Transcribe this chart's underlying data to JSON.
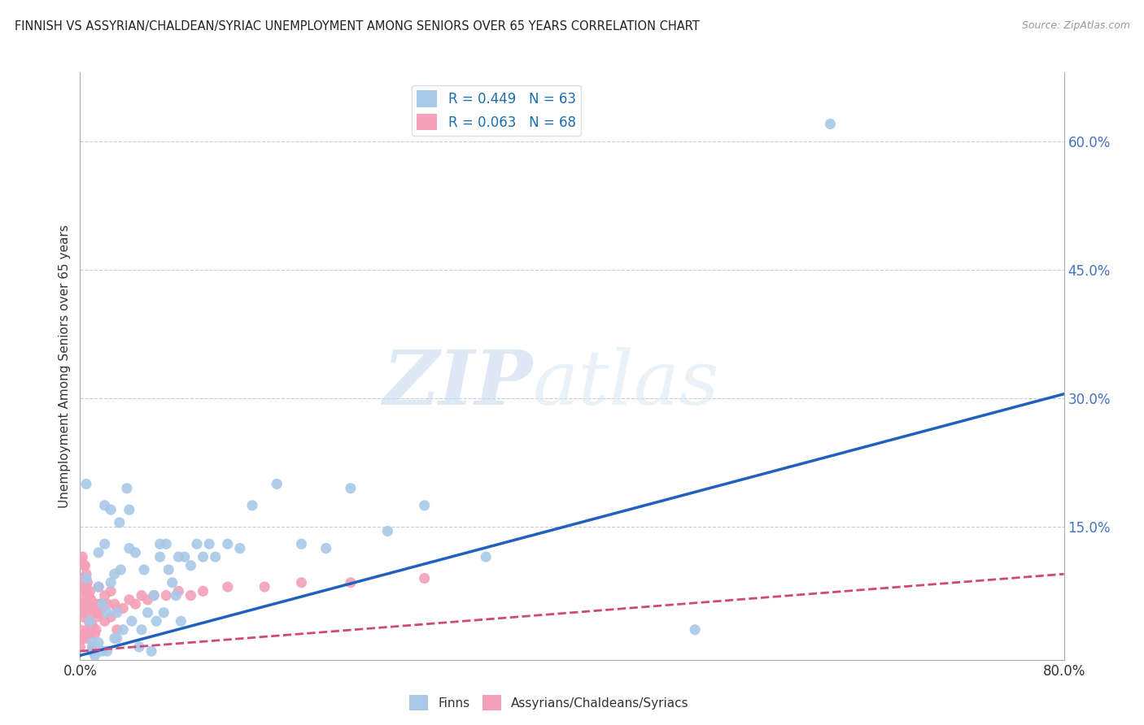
{
  "title": "FINNISH VS ASSYRIAN/CHALDEAN/SYRIAC UNEMPLOYMENT AMONG SENIORS OVER 65 YEARS CORRELATION CHART",
  "source": "Source: ZipAtlas.com",
  "ylabel": "Unemployment Among Seniors over 65 years",
  "xlim": [
    0,
    0.8
  ],
  "ylim": [
    -0.005,
    0.68
  ],
  "yticks": [
    0.15,
    0.3,
    0.45,
    0.6
  ],
  "ytick_labels": [
    "15.0%",
    "30.0%",
    "45.0%",
    "60.0%"
  ],
  "xtick_labels": [
    "0.0%",
    "80.0%"
  ],
  "blue_R": 0.449,
  "blue_N": 63,
  "pink_R": 0.063,
  "pink_N": 68,
  "blue_color": "#a8c8e8",
  "pink_color": "#f4a0b8",
  "blue_line_color": "#2060c0",
  "pink_line_color": "#d04878",
  "legend1": "Finns",
  "legend2": "Assyrians/Chaldeans/Syriacs",
  "watermark_zip": "ZIP",
  "watermark_atlas": "atlas",
  "background_color": "#ffffff",
  "blue_scatter_x": [
    0.005,
    0.005,
    0.008,
    0.01,
    0.01,
    0.012,
    0.015,
    0.015,
    0.015,
    0.018,
    0.018,
    0.02,
    0.02,
    0.022,
    0.022,
    0.025,
    0.025,
    0.028,
    0.028,
    0.03,
    0.03,
    0.032,
    0.033,
    0.035,
    0.038,
    0.04,
    0.04,
    0.042,
    0.045,
    0.048,
    0.05,
    0.052,
    0.055,
    0.058,
    0.06,
    0.062,
    0.065,
    0.065,
    0.068,
    0.07,
    0.072,
    0.075,
    0.078,
    0.08,
    0.082,
    0.085,
    0.09,
    0.095,
    0.1,
    0.105,
    0.11,
    0.12,
    0.13,
    0.14,
    0.16,
    0.18,
    0.2,
    0.22,
    0.25,
    0.28,
    0.33,
    0.5,
    0.61
  ],
  "blue_scatter_y": [
    0.2,
    0.09,
    0.04,
    0.015,
    0.005,
    0.0,
    0.12,
    0.08,
    0.015,
    0.06,
    0.005,
    0.175,
    0.13,
    0.05,
    0.005,
    0.17,
    0.085,
    0.095,
    0.02,
    0.02,
    0.05,
    0.155,
    0.1,
    0.03,
    0.195,
    0.17,
    0.125,
    0.04,
    0.12,
    0.01,
    0.03,
    0.1,
    0.05,
    0.005,
    0.07,
    0.04,
    0.13,
    0.115,
    0.05,
    0.13,
    0.1,
    0.085,
    0.07,
    0.115,
    0.04,
    0.115,
    0.105,
    0.13,
    0.115,
    0.13,
    0.115,
    0.13,
    0.125,
    0.175,
    0.2,
    0.13,
    0.125,
    0.195,
    0.145,
    0.175,
    0.115,
    0.03,
    0.62
  ],
  "pink_scatter_x": [
    0.0,
    0.0,
    0.0,
    0.001,
    0.001,
    0.001,
    0.002,
    0.002,
    0.002,
    0.002,
    0.002,
    0.003,
    0.003,
    0.003,
    0.004,
    0.004,
    0.004,
    0.004,
    0.005,
    0.005,
    0.005,
    0.005,
    0.006,
    0.006,
    0.006,
    0.007,
    0.007,
    0.008,
    0.008,
    0.008,
    0.009,
    0.009,
    0.01,
    0.01,
    0.01,
    0.011,
    0.012,
    0.012,
    0.013,
    0.013,
    0.014,
    0.015,
    0.015,
    0.016,
    0.018,
    0.02,
    0.02,
    0.022,
    0.025,
    0.025,
    0.028,
    0.03,
    0.03,
    0.035,
    0.04,
    0.045,
    0.05,
    0.055,
    0.06,
    0.07,
    0.08,
    0.09,
    0.1,
    0.12,
    0.15,
    0.18,
    0.22,
    0.28
  ],
  "pink_scatter_y": [
    0.05,
    0.03,
    0.01,
    0.11,
    0.08,
    0.06,
    0.115,
    0.09,
    0.07,
    0.045,
    0.02,
    0.105,
    0.085,
    0.06,
    0.105,
    0.08,
    0.055,
    0.025,
    0.095,
    0.075,
    0.05,
    0.02,
    0.085,
    0.06,
    0.03,
    0.07,
    0.04,
    0.075,
    0.055,
    0.025,
    0.065,
    0.035,
    0.055,
    0.035,
    0.01,
    0.055,
    0.05,
    0.025,
    0.06,
    0.03,
    0.045,
    0.08,
    0.05,
    0.06,
    0.055,
    0.07,
    0.04,
    0.06,
    0.075,
    0.045,
    0.06,
    0.055,
    0.03,
    0.055,
    0.065,
    0.06,
    0.07,
    0.065,
    0.07,
    0.07,
    0.075,
    0.07,
    0.075,
    0.08,
    0.08,
    0.085,
    0.085,
    0.09
  ],
  "blue_trend_x": [
    0.0,
    0.8
  ],
  "blue_trend_y": [
    0.0,
    0.305
  ],
  "pink_trend_x": [
    0.0,
    0.8
  ],
  "pink_trend_y": [
    0.005,
    0.095
  ]
}
